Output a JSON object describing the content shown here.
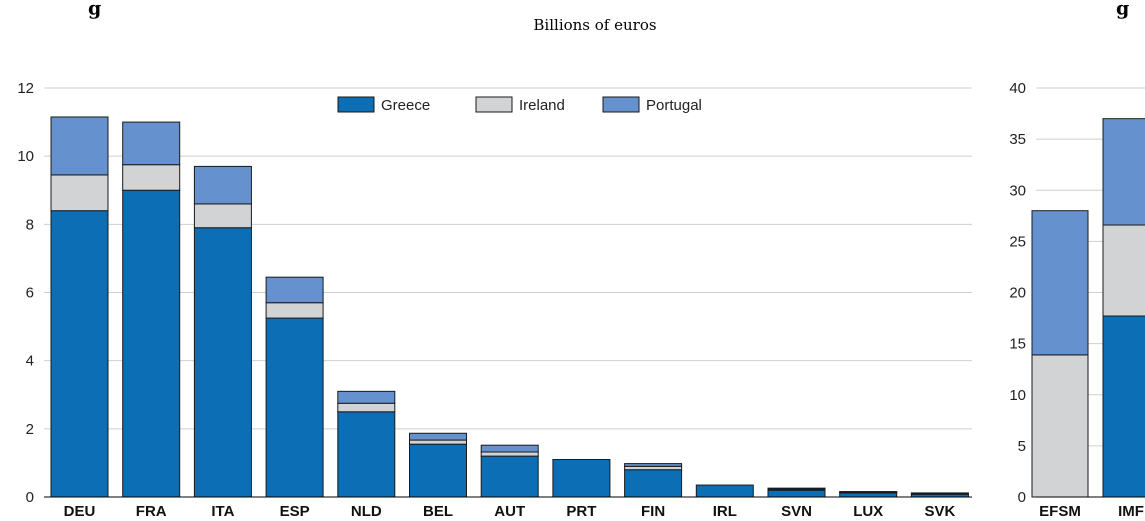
{
  "page": {
    "title_fragment": "g",
    "title_tail": "g",
    "subtitle": "Billions of euros"
  },
  "colors": {
    "greece": "#0c6fb6",
    "ireland": "#d2d3d5",
    "portugal": "#6592cf",
    "grid": "#cfcfcf",
    "axis": "#000000"
  },
  "chart_data": [
    {
      "type": "bar",
      "stacked": true,
      "categories": [
        "DEU",
        "FRA",
        "ITA",
        "ESP",
        "NLD",
        "BEL",
        "AUT",
        "PRT",
        "FIN",
        "IRL",
        "SVN",
        "LUX",
        "SVK"
      ],
      "series": [
        {
          "name": "Greece",
          "values": [
            8.4,
            9.0,
            7.9,
            5.25,
            2.5,
            1.55,
            1.2,
            1.1,
            0.8,
            0.35,
            0.2,
            0.12,
            0.08
          ]
        },
        {
          "name": "Ireland",
          "values": [
            1.05,
            0.75,
            0.7,
            0.45,
            0.25,
            0.12,
            0.12,
            0.0,
            0.1,
            0.0,
            0.03,
            0.02,
            0.02
          ]
        },
        {
          "name": "Portugal",
          "values": [
            1.7,
            1.25,
            1.1,
            0.75,
            0.35,
            0.2,
            0.2,
            0.0,
            0.08,
            0.0,
            0.03,
            0.02,
            0.02
          ]
        }
      ],
      "ylim": [
        0,
        12
      ],
      "yticks": [
        0,
        2,
        4,
        6,
        8,
        10,
        12
      ],
      "grid": true,
      "legend": "top-center"
    },
    {
      "type": "bar",
      "stacked": true,
      "categories": [
        "EFSM",
        "IMF"
      ],
      "series": [
        {
          "name": "Greece",
          "values": [
            0,
            17.7
          ]
        },
        {
          "name": "Ireland",
          "values": [
            13.9,
            8.9
          ]
        },
        {
          "name": "Portugal",
          "values": [
            14.1,
            10.4
          ]
        }
      ],
      "ylim": [
        0,
        40
      ],
      "yticks": [
        0,
        5,
        10,
        15,
        20,
        25,
        30,
        35,
        40
      ],
      "grid": true
    }
  ]
}
